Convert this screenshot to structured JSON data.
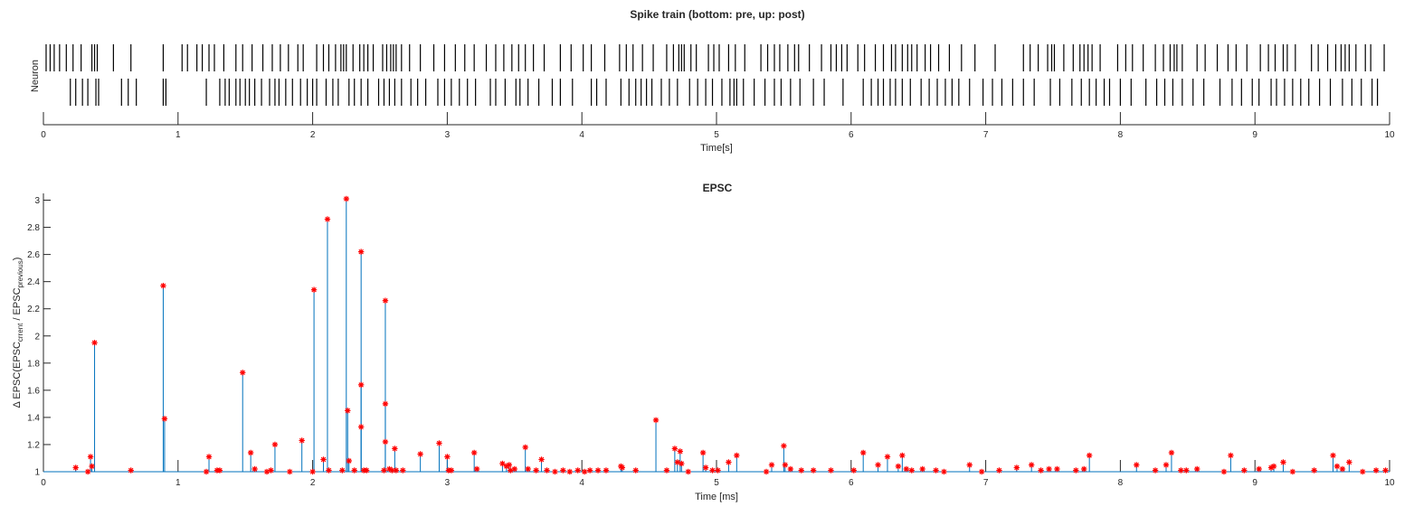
{
  "chart_data": [
    {
      "type": "raster",
      "title": "Spike train (bottom: pre, up: post)",
      "xlabel": "Time[s]",
      "ylabel": "Neuron",
      "xlim": [
        0,
        10
      ],
      "xticks": [
        "0",
        "1",
        "2",
        "3",
        "4",
        "5",
        "6",
        "7",
        "8",
        "9",
        "10"
      ],
      "grid": false,
      "series": [
        {
          "role": "upper row",
          "spikes": [
            0.02,
            0.05,
            0.08,
            0.12,
            0.17,
            0.22,
            0.28,
            0.36,
            0.38,
            0.4,
            0.52,
            0.65,
            0.89,
            1.03,
            1.07,
            1.14,
            1.18,
            1.23,
            1.27,
            1.34,
            1.43,
            1.48,
            1.55,
            1.63,
            1.7,
            1.76,
            1.82,
            1.89,
            1.93,
            2.03,
            2.08,
            2.12,
            2.17,
            2.21,
            2.23,
            2.25,
            2.3,
            2.35,
            2.38,
            2.41,
            2.45,
            2.52,
            2.55,
            2.58,
            2.6,
            2.62,
            2.66,
            2.72,
            2.8,
            2.9,
            2.98,
            3.06,
            3.13,
            3.2,
            3.29,
            3.36,
            3.42,
            3.48,
            3.53,
            3.58,
            3.64,
            3.72,
            3.84,
            3.92,
            4.01,
            4.07,
            4.17,
            4.28,
            4.33,
            4.38,
            4.45,
            4.53,
            4.63,
            4.68,
            4.72,
            4.74,
            4.76,
            4.81,
            4.85,
            4.94,
            4.98,
            5.02,
            5.09,
            5.14,
            5.21,
            5.33,
            5.38,
            5.43,
            5.47,
            5.53,
            5.58,
            5.61,
            5.69,
            5.78,
            5.85,
            5.89,
            5.93,
            5.97,
            6.05,
            6.1,
            6.18,
            6.24,
            6.3,
            6.33,
            6.38,
            6.42,
            6.45,
            6.49,
            6.55,
            6.59,
            6.65,
            6.73,
            6.82,
            6.92,
            7.07,
            7.28,
            7.33,
            7.39,
            7.46,
            7.49,
            7.51,
            7.58,
            7.65,
            7.7,
            7.73,
            7.76,
            7.79,
            7.85,
            7.98,
            8.04,
            8.09,
            8.17,
            8.26,
            8.32,
            8.37,
            8.4,
            8.42,
            8.46,
            8.57,
            8.63,
            8.72,
            8.8,
            8.86,
            8.94,
            9.04,
            9.1,
            9.15,
            9.21,
            9.24,
            9.3,
            9.42,
            9.47,
            9.54,
            9.6,
            9.64,
            9.67,
            9.7,
            9.75,
            9.82,
            9.86,
            9.96
          ]
        },
        {
          "role": "lower row",
          "spikes": [
            0.2,
            0.24,
            0.29,
            0.33,
            0.39,
            0.41,
            0.58,
            0.63,
            0.69,
            0.89,
            0.91,
            1.21,
            1.31,
            1.35,
            1.38,
            1.43,
            1.46,
            1.5,
            1.53,
            1.57,
            1.62,
            1.68,
            1.72,
            1.75,
            1.8,
            1.85,
            1.91,
            1.96,
            2.0,
            2.03,
            2.1,
            2.15,
            2.19,
            2.27,
            2.31,
            2.36,
            2.41,
            2.49,
            2.53,
            2.57,
            2.61,
            2.66,
            2.73,
            2.78,
            2.84,
            2.93,
            2.98,
            3.03,
            3.09,
            3.15,
            3.21,
            3.32,
            3.36,
            3.43,
            3.51,
            3.54,
            3.6,
            3.68,
            3.78,
            3.84,
            3.93,
            4.07,
            4.11,
            4.18,
            4.29,
            4.35,
            4.4,
            4.44,
            4.48,
            4.52,
            4.59,
            4.65,
            4.71,
            4.8,
            4.86,
            4.92,
            4.97,
            5.04,
            5.1,
            5.13,
            5.15,
            5.2,
            5.28,
            5.36,
            5.43,
            5.48,
            5.55,
            5.62,
            5.72,
            5.8,
            5.94,
            6.09,
            6.15,
            6.2,
            6.24,
            6.29,
            6.33,
            6.38,
            6.44,
            6.52,
            6.58,
            6.64,
            6.7,
            6.75,
            6.8,
            6.88,
            6.98,
            7.05,
            7.12,
            7.2,
            7.28,
            7.36,
            7.48,
            7.55,
            7.64,
            7.71,
            7.77,
            7.82,
            7.88,
            7.92,
            8.0,
            8.08,
            8.19,
            8.27,
            8.33,
            8.39,
            8.46,
            8.54,
            8.62,
            8.74,
            8.83,
            8.9,
            8.98,
            9.03,
            9.12,
            9.16,
            9.22,
            9.28,
            9.34,
            9.4,
            9.48,
            9.56,
            9.65,
            9.72,
            9.79,
            9.87,
            9.91
          ]
        }
      ]
    },
    {
      "type": "stem",
      "title": "EPSC",
      "xlabel": "Time [ms]",
      "ylabel": "Δ EPSC(EPSC",
      "ylabel_sub1": "crrent",
      "ylabel_mid": " / EPSC",
      "ylabel_sub2": "previous",
      "ylabel_end": ")",
      "xlim": [
        0,
        10
      ],
      "ylim": [
        1,
        3.05
      ],
      "xticks": [
        "0",
        "1",
        "2",
        "3",
        "4",
        "5",
        "6",
        "7",
        "8",
        "9",
        "10"
      ],
      "yticks": [
        "1",
        "1.2",
        "1.4",
        "1.6",
        "1.8",
        "2",
        "2.2",
        "2.4",
        "2.6",
        "2.8",
        "3"
      ],
      "grid": false,
      "colors": {
        "stem": "#0072bd",
        "marker": "#ff0000",
        "axis": "#262626"
      },
      "points": [
        [
          0.24,
          1.03
        ],
        [
          0.33,
          1.0
        ],
        [
          0.35,
          1.11
        ],
        [
          0.36,
          1.04
        ],
        [
          0.38,
          1.95
        ],
        [
          0.65,
          1.01
        ],
        [
          0.89,
          2.37
        ],
        [
          0.9,
          1.39
        ],
        [
          1.21,
          1.0
        ],
        [
          1.23,
          1.11
        ],
        [
          1.29,
          1.01
        ],
        [
          1.31,
          1.01
        ],
        [
          1.48,
          1.73
        ],
        [
          1.54,
          1.14
        ],
        [
          1.57,
          1.02
        ],
        [
          1.66,
          1.0
        ],
        [
          1.69,
          1.01
        ],
        [
          1.72,
          1.2
        ],
        [
          1.83,
          1.0
        ],
        [
          1.92,
          1.23
        ],
        [
          2.01,
          2.34
        ],
        [
          2.0,
          1.0
        ],
        [
          2.08,
          1.09
        ],
        [
          2.11,
          2.86
        ],
        [
          2.12,
          1.01
        ],
        [
          2.22,
          1.01
        ],
        [
          2.25,
          3.01
        ],
        [
          2.26,
          1.45
        ],
        [
          2.27,
          1.08
        ],
        [
          2.31,
          1.01
        ],
        [
          2.36,
          2.62
        ],
        [
          2.36,
          1.64
        ],
        [
          2.36,
          1.33
        ],
        [
          2.38,
          1.01
        ],
        [
          2.4,
          1.01
        ],
        [
          2.54,
          2.26
        ],
        [
          2.54,
          1.5
        ],
        [
          2.54,
          1.22
        ],
        [
          2.53,
          1.01
        ],
        [
          2.57,
          1.02
        ],
        [
          2.59,
          1.01
        ],
        [
          2.61,
          1.17
        ],
        [
          2.62,
          1.01
        ],
        [
          2.67,
          1.01
        ],
        [
          2.8,
          1.13
        ],
        [
          2.94,
          1.21
        ],
        [
          3.0,
          1.11
        ],
        [
          3.01,
          1.01
        ],
        [
          3.03,
          1.01
        ],
        [
          3.2,
          1.14
        ],
        [
          3.22,
          1.02
        ],
        [
          3.41,
          1.06
        ],
        [
          3.44,
          1.04
        ],
        [
          3.46,
          1.05
        ],
        [
          3.47,
          1.01
        ],
        [
          3.5,
          1.02
        ],
        [
          3.58,
          1.18
        ],
        [
          3.6,
          1.02
        ],
        [
          3.66,
          1.01
        ],
        [
          3.7,
          1.09
        ],
        [
          3.74,
          1.01
        ],
        [
          3.8,
          1.0
        ],
        [
          3.86,
          1.01
        ],
        [
          3.91,
          1.0
        ],
        [
          3.97,
          1.01
        ],
        [
          4.02,
          1.0
        ],
        [
          4.06,
          1.01
        ],
        [
          4.12,
          1.01
        ],
        [
          4.18,
          1.01
        ],
        [
          4.29,
          1.04
        ],
        [
          4.3,
          1.03
        ],
        [
          4.4,
          1.01
        ],
        [
          4.55,
          1.38
        ],
        [
          4.63,
          1.01
        ],
        [
          4.69,
          1.17
        ],
        [
          4.71,
          1.07
        ],
        [
          4.73,
          1.15
        ],
        [
          4.74,
          1.06
        ],
        [
          4.79,
          1.0
        ],
        [
          4.9,
          1.14
        ],
        [
          4.92,
          1.03
        ],
        [
          4.97,
          1.01
        ],
        [
          5.01,
          1.01
        ],
        [
          5.09,
          1.07
        ],
        [
          5.15,
          1.12
        ],
        [
          5.37,
          1.0
        ],
        [
          5.41,
          1.05
        ],
        [
          5.5,
          1.19
        ],
        [
          5.51,
          1.05
        ],
        [
          5.55,
          1.02
        ],
        [
          5.63,
          1.01
        ],
        [
          5.72,
          1.01
        ],
        [
          5.85,
          1.01
        ],
        [
          6.02,
          1.01
        ],
        [
          6.09,
          1.14
        ],
        [
          6.2,
          1.05
        ],
        [
          6.27,
          1.11
        ],
        [
          6.35,
          1.04
        ],
        [
          6.38,
          1.12
        ],
        [
          6.41,
          1.02
        ],
        [
          6.45,
          1.01
        ],
        [
          6.53,
          1.02
        ],
        [
          6.63,
          1.01
        ],
        [
          6.69,
          1.0
        ],
        [
          6.88,
          1.05
        ],
        [
          6.97,
          1.0
        ],
        [
          7.1,
          1.01
        ],
        [
          7.23,
          1.03
        ],
        [
          7.34,
          1.05
        ],
        [
          7.41,
          1.01
        ],
        [
          7.47,
          1.02
        ],
        [
          7.53,
          1.02
        ],
        [
          7.67,
          1.01
        ],
        [
          7.73,
          1.02
        ],
        [
          7.77,
          1.12
        ],
        [
          8.12,
          1.05
        ],
        [
          8.26,
          1.01
        ],
        [
          8.34,
          1.05
        ],
        [
          8.38,
          1.14
        ],
        [
          8.45,
          1.01
        ],
        [
          8.49,
          1.01
        ],
        [
          8.57,
          1.02
        ],
        [
          8.77,
          1.0
        ],
        [
          8.82,
          1.12
        ],
        [
          8.92,
          1.01
        ],
        [
          9.03,
          1.02
        ],
        [
          9.12,
          1.03
        ],
        [
          9.14,
          1.04
        ],
        [
          9.21,
          1.07
        ],
        [
          9.28,
          1.0
        ],
        [
          9.44,
          1.01
        ],
        [
          9.58,
          1.12
        ],
        [
          9.61,
          1.04
        ],
        [
          9.65,
          1.02
        ],
        [
          9.7,
          1.07
        ],
        [
          9.8,
          1.0
        ],
        [
          9.9,
          1.01
        ],
        [
          9.97,
          1.01
        ]
      ]
    }
  ]
}
